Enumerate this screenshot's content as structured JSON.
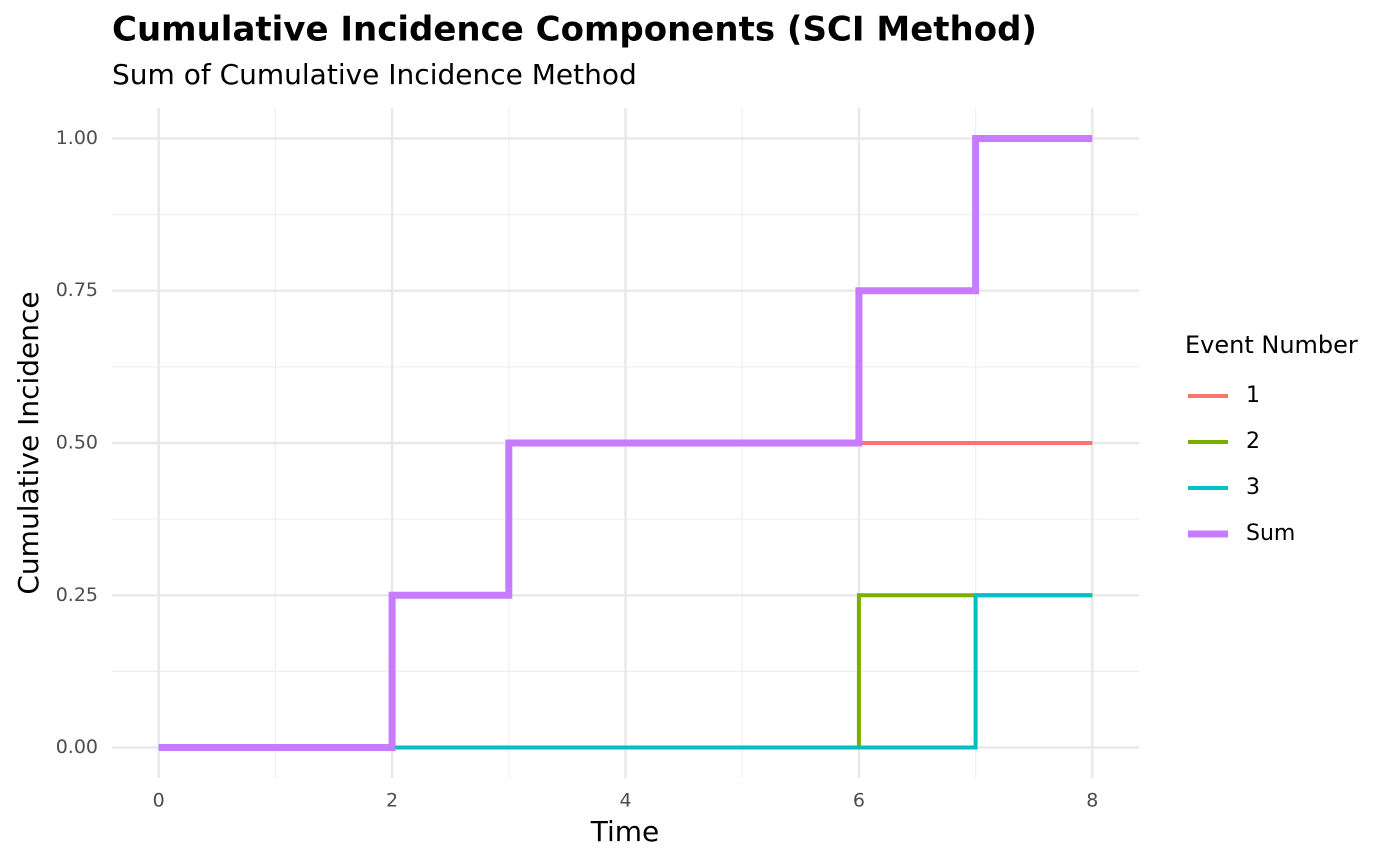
{
  "chart_data": {
    "type": "step",
    "title": "Cumulative Incidence Components (SCI Method)",
    "subtitle": "Sum of Cumulative Incidence Method",
    "x_label": "Time",
    "y_label": "Cumulative Incidence",
    "legend_title": "Event Number",
    "legend_position": "right",
    "x": [
      0,
      2,
      3,
      6,
      7,
      8
    ],
    "series": [
      {
        "name": "1",
        "color": "#F8766D",
        "linewidth": 4,
        "values": [
          0,
          0.25,
          0.5,
          0.5,
          0.5,
          0.5
        ]
      },
      {
        "name": "2",
        "color": "#7CAE00",
        "linewidth": 4,
        "values": [
          0,
          0,
          0,
          0.25,
          0.25,
          0.25
        ]
      },
      {
        "name": "3",
        "color": "#00BFC4",
        "linewidth": 4,
        "values": [
          0,
          0,
          0,
          0,
          0.25,
          0.25
        ]
      },
      {
        "name": "Sum",
        "color": "#C77CFF",
        "linewidth": 7,
        "values": [
          0,
          0.25,
          0.5,
          0.75,
          1,
          1
        ]
      }
    ],
    "xlim": [
      -0.4,
      8.4
    ],
    "ylim": [
      -0.05,
      1.05
    ],
    "xticks": [
      0,
      2,
      4,
      6,
      8
    ],
    "yticks": [
      {
        "value": 0,
        "label": "0.00"
      },
      {
        "value": 0.25,
        "label": "0.25"
      },
      {
        "value": 0.5,
        "label": "0.50"
      },
      {
        "value": 0.75,
        "label": "0.75"
      },
      {
        "value": 1,
        "label": "1.00"
      }
    ],
    "grid": true
  }
}
